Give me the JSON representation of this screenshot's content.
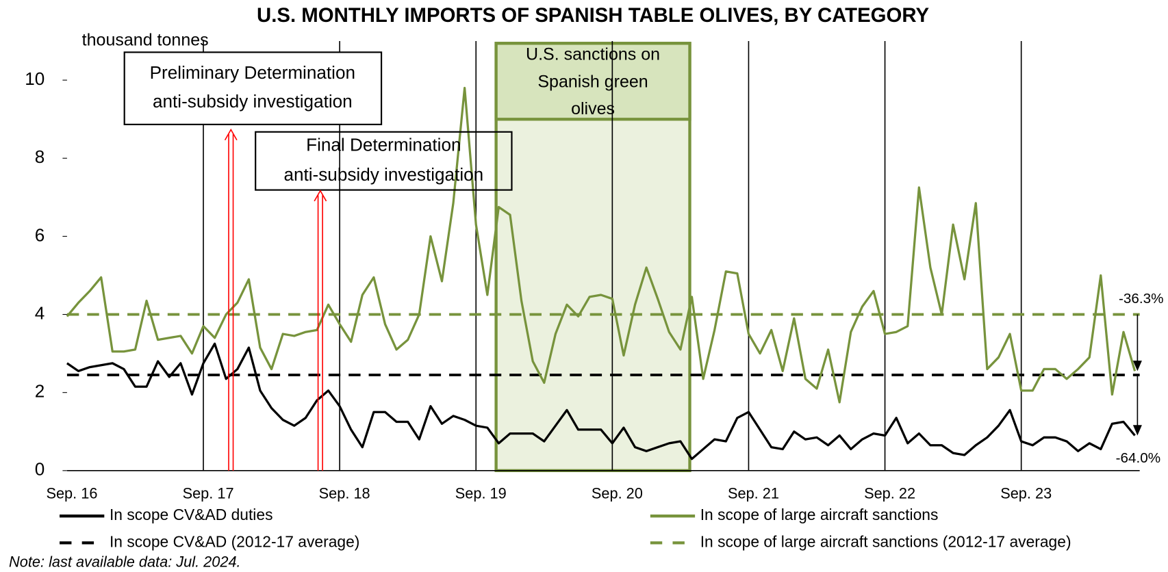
{
  "chart_data": {
    "type": "line",
    "title": "U.S. MONTHLY IMPORTS OF SPANISH TABLE OLIVES, BY CATEGORY",
    "y_label": "thousand tonnes",
    "note": "Note: last available data: Jul. 2024.",
    "categories": [
      "Sep. 16",
      null,
      null,
      null,
      null,
      null,
      null,
      null,
      null,
      null,
      null,
      null,
      "Sep. 17",
      null,
      null,
      null,
      null,
      null,
      null,
      null,
      null,
      null,
      null,
      null,
      "Sep. 18",
      null,
      null,
      null,
      null,
      null,
      null,
      null,
      null,
      null,
      null,
      null,
      "Sep. 19",
      null,
      null,
      null,
      null,
      null,
      null,
      null,
      null,
      null,
      null,
      null,
      "Sep. 20",
      null,
      null,
      null,
      null,
      null,
      null,
      null,
      null,
      null,
      null,
      null,
      "Sep. 21",
      null,
      null,
      null,
      null,
      null,
      null,
      null,
      null,
      null,
      null,
      null,
      "Sep. 22",
      null,
      null,
      null,
      null,
      null,
      null,
      null,
      null,
      null,
      null,
      null,
      "Sep. 23",
      null,
      null,
      null,
      null,
      null,
      null,
      null,
      null,
      null,
      null
    ],
    "series": [
      {
        "name": "In scope CV&AD duties",
        "color": "#000000",
        "values": [
          2.75,
          2.55,
          2.65,
          2.7,
          2.75,
          2.6,
          2.15,
          2.15,
          2.8,
          2.4,
          2.75,
          1.95,
          2.75,
          3.25,
          2.35,
          2.6,
          3.15,
          2.05,
          1.6,
          1.3,
          1.15,
          1.35,
          1.8,
          2.05,
          1.65,
          1.05,
          0.6,
          1.5,
          1.5,
          1.25,
          1.25,
          0.8,
          1.65,
          1.2,
          1.4,
          1.3,
          1.15,
          1.1,
          0.7,
          0.95,
          0.95,
          0.95,
          0.75,
          1.15,
          1.55,
          1.05,
          1.05,
          1.05,
          0.7,
          1.1,
          0.6,
          0.5,
          0.6,
          0.7,
          0.75,
          0.3,
          0.55,
          0.8,
          0.75,
          1.35,
          1.5,
          1.05,
          0.6,
          0.55,
          1.0,
          0.8,
          0.85,
          0.65,
          0.9,
          0.55,
          0.8,
          0.95,
          0.9,
          1.35,
          0.7,
          0.95,
          0.65,
          0.65,
          0.45,
          0.4,
          0.65,
          0.85,
          1.15,
          1.55,
          0.75,
          0.65,
          0.85,
          0.85,
          0.75,
          0.5,
          0.7,
          0.55,
          1.2,
          1.25,
          0.9
        ]
      },
      {
        "name": "In scope of large aircraft sanctions",
        "color": "#77933c",
        "values": [
          3.95,
          4.3,
          4.6,
          4.95,
          3.05,
          3.05,
          3.1,
          4.35,
          3.35,
          3.4,
          3.45,
          3.0,
          3.7,
          3.4,
          4.0,
          4.3,
          4.9,
          3.15,
          2.6,
          3.5,
          3.45,
          3.55,
          3.6,
          4.25,
          3.75,
          3.3,
          4.5,
          4.95,
          3.75,
          3.1,
          3.35,
          4.0,
          6.0,
          4.85,
          6.85,
          9.8,
          6.3,
          4.5,
          6.75,
          6.55,
          4.35,
          2.8,
          2.25,
          3.5,
          4.25,
          3.95,
          4.45,
          4.5,
          4.4,
          2.95,
          4.25,
          5.2,
          4.4,
          3.55,
          3.1,
          4.45,
          2.35,
          3.6,
          5.1,
          5.05,
          3.5,
          3.0,
          3.6,
          2.55,
          3.9,
          2.35,
          2.1,
          3.1,
          1.75,
          3.55,
          4.2,
          4.6,
          3.5,
          3.55,
          3.7,
          7.25,
          5.2,
          4.0,
          6.3,
          4.9,
          6.85,
          2.6,
          2.9,
          3.5,
          2.05,
          2.05,
          2.6,
          2.6,
          2.35,
          2.6,
          2.9,
          5.0,
          1.95,
          3.55,
          2.55
        ]
      }
    ],
    "reference_lines": [
      {
        "name": "In scope CV&AD (2012-17 average)",
        "color": "#000000",
        "value": 2.45,
        "dashed": true
      },
      {
        "name": "In scope of large aircraft sanctions (2012-17 average)",
        "color": "#77933c",
        "value": 4.0,
        "dashed": true
      }
    ],
    "annotations": {
      "preliminary": [
        "Preliminary Determination",
        "anti-subsidy investigation"
      ],
      "final": [
        "Final Determination",
        "anti-subsidy investigation"
      ],
      "sanctions": [
        "U.S. sanctions on",
        "Spanish green",
        "olives"
      ],
      "green_change": "-36.3%",
      "black_change": "-64.0%"
    },
    "ylim": [
      0,
      11
    ],
    "yticks": [
      0,
      2,
      4,
      6,
      8,
      10
    ]
  }
}
